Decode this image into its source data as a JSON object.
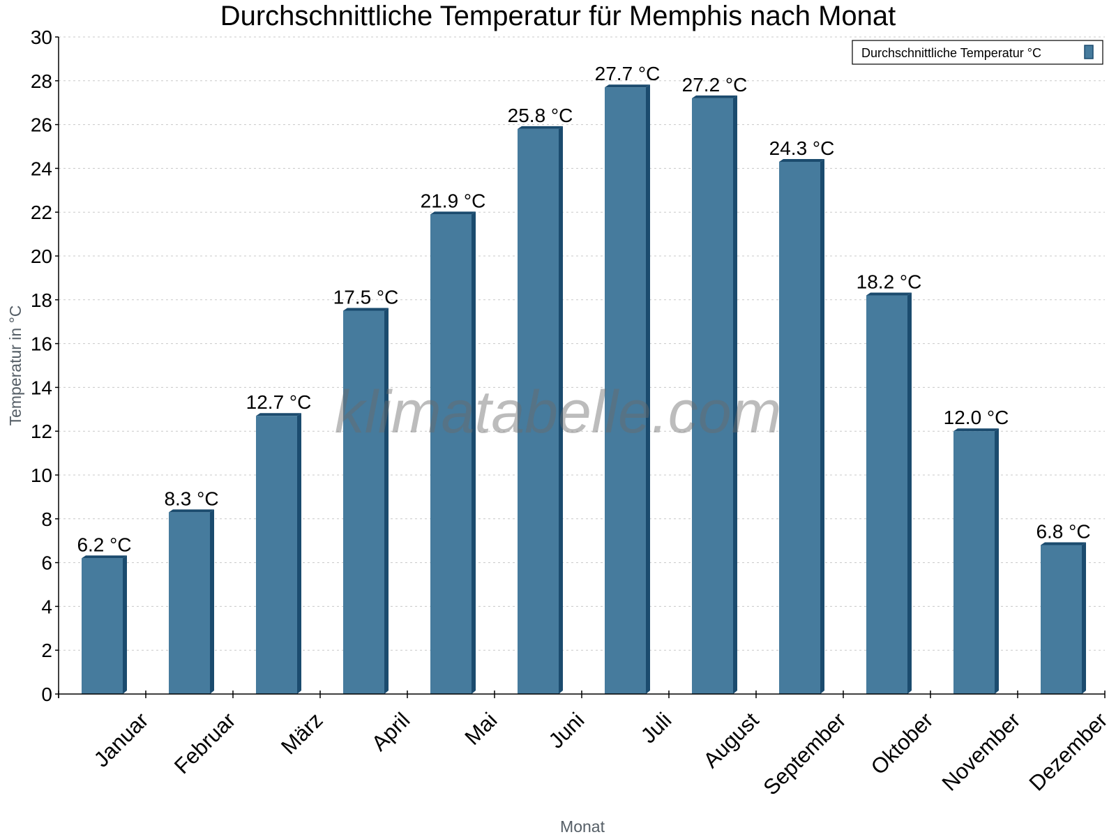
{
  "chart_data": {
    "type": "bar",
    "title": "Durchschnittliche Temperatur für Memphis nach Monat",
    "xlabel": "Monat",
    "ylabel": "Temperatur in °C",
    "categories": [
      "Januar",
      "Februar",
      "März",
      "April",
      "Mai",
      "Juni",
      "Juli",
      "August",
      "September",
      "Oktober",
      "November",
      "Dezember"
    ],
    "series": [
      {
        "name": "Durchschnittliche Temperatur °C",
        "values": [
          6.2,
          8.3,
          12.7,
          17.5,
          21.9,
          25.8,
          27.7,
          27.2,
          24.3,
          18.2,
          12.0,
          6.8
        ]
      }
    ],
    "data_labels": [
      "6.2 °C",
      "8.3 °C",
      "12.7 °C",
      "17.5 °C",
      "21.9 °C",
      "25.8 °C",
      "27.7 °C",
      "27.2 °C",
      "24.3 °C",
      "18.2 °C",
      "12.0 °C",
      "6.8 °C"
    ],
    "ylim": [
      0,
      30
    ],
    "yticks": [
      0,
      2,
      4,
      6,
      8,
      10,
      12,
      14,
      16,
      18,
      20,
      22,
      24,
      26,
      28,
      30
    ],
    "grid": true,
    "legend_position": "top-right",
    "colors": {
      "bar": "#467b9d",
      "bar_side": "#1b4b6e",
      "grid": "#c8c8c8",
      "axis_label": "#555e66"
    }
  },
  "watermark": "klimatabelle.com"
}
